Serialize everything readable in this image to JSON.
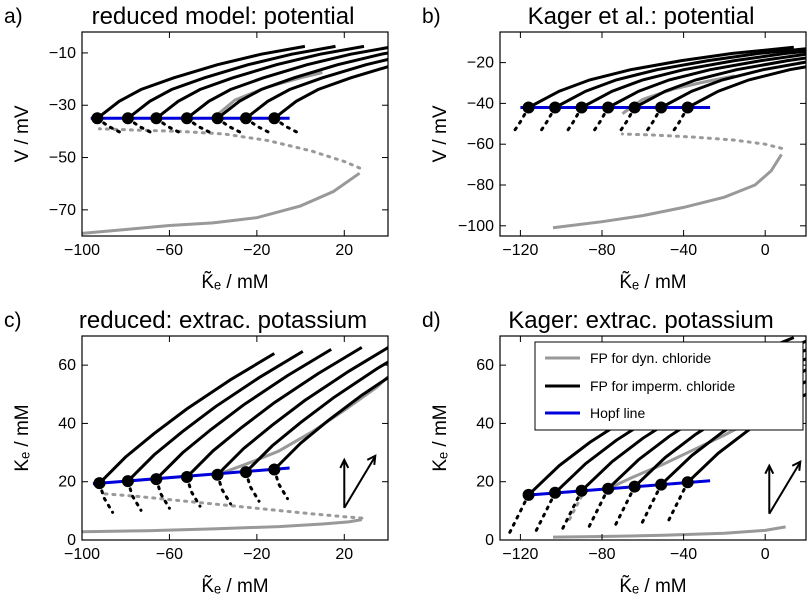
{
  "figure": {
    "legend": [
      {
        "label": "FP for dyn. chloride",
        "color": "#999999",
        "style": "solid"
      },
      {
        "label": "FP for imperm. chloride",
        "color": "#000000",
        "style": "solid"
      },
      {
        "label": "Hopf line",
        "color": "#0000dd",
        "style": "solid"
      }
    ],
    "colors": {
      "dyn": "#999999",
      "imperm": "#000000",
      "hopf": "#0000dd"
    }
  },
  "chart_data": [
    {
      "type": "line",
      "panel": "a)",
      "title": "reduced model: potential",
      "xlabel": "K̃ₑ / mM",
      "ylabel": "V / mV",
      "xlim": [
        -100,
        40
      ],
      "ylim": [
        -80,
        -2
      ],
      "xticks": [
        -100,
        -60,
        -20,
        20
      ],
      "yticks": [
        -70,
        -50,
        -30,
        -10
      ],
      "xtick_labels": [
        "−100",
        "−60",
        "−20",
        "20"
      ],
      "ytick_labels": [
        "−70",
        "−50",
        "−30",
        "−10"
      ],
      "hopf_points": [
        [
          -93,
          -35
        ],
        [
          -79,
          -35
        ],
        [
          -66,
          -35
        ],
        [
          -52,
          -35
        ],
        [
          -38,
          -35
        ],
        [
          -25,
          -35
        ],
        [
          -12,
          -35
        ]
      ],
      "hopf_line": {
        "x": [
          -96,
          -5
        ],
        "y": [
          -35,
          -35
        ]
      },
      "imperm_branch": {
        "dx": [
          0,
          10,
          20,
          35,
          55,
          75,
          95
        ],
        "dy": [
          0,
          6.5,
          11,
          15.5,
          20.5,
          24.5,
          27.5
        ],
        "dotted_dx": [
          0,
          5,
          12
        ],
        "dotted_dy": [
          0,
          -3,
          -6
        ]
      },
      "dyn_stable_low": {
        "x": [
          -100,
          -80,
          -60,
          -40,
          -20,
          0,
          15,
          27
        ],
        "y": [
          -79,
          -77.5,
          -76,
          -75,
          -73,
          -68.5,
          -63,
          -56
        ]
      },
      "dyn_unstable": {
        "x": [
          27,
          20,
          5,
          -15,
          -35,
          -55,
          -75,
          -92
        ],
        "y": [
          -54,
          -51.5,
          -47.5,
          -43.5,
          -41,
          -40,
          -39.5,
          -39
        ]
      },
      "dyn_stable_high": {
        "x": [
          -40,
          -30,
          -15,
          0,
          10
        ],
        "y": [
          -35,
          -28,
          -23,
          -19.5,
          -17.5
        ]
      }
    },
    {
      "type": "line",
      "panel": "b)",
      "title": "Kager et al.: potential",
      "xlabel": "K̃ₑ / mM",
      "ylabel": "V / mV",
      "xlim": [
        -130,
        20
      ],
      "ylim": [
        -105,
        -5
      ],
      "xticks": [
        -120,
        -80,
        -40,
        0
      ],
      "yticks": [
        -100,
        -80,
        -60,
        -40,
        -20
      ],
      "xtick_labels": [
        "−120",
        "−80",
        "−40",
        "0"
      ],
      "ytick_labels": [
        "−100",
        "−80",
        "−60",
        "−40",
        "−20"
      ],
      "hopf_points": [
        [
          -116,
          -42
        ],
        [
          -103,
          -42
        ],
        [
          -90,
          -42
        ],
        [
          -77,
          -42
        ],
        [
          -64,
          -42
        ],
        [
          -51,
          -42
        ],
        [
          -38,
          -42
        ]
      ],
      "hopf_line": {
        "x": [
          -120,
          -27
        ],
        "y": [
          -42,
          -42
        ]
      },
      "imperm_branch": {
        "dx": [
          0,
          15,
          30,
          50,
          75,
          100,
          130
        ],
        "dy": [
          0,
          8,
          13.5,
          18.5,
          23,
          26.5,
          29.5
        ],
        "dotted_dx": [
          0,
          -4,
          -8
        ],
        "dotted_dy": [
          0,
          -7,
          -13
        ]
      },
      "dyn_stable_low": {
        "x": [
          -104,
          -80,
          -60,
          -40,
          -20,
          -5,
          3,
          8
        ],
        "y": [
          -101,
          -98,
          -95,
          -91,
          -86,
          -80,
          -73,
          -65
        ]
      },
      "dyn_unstable": {
        "x": [
          8,
          0,
          -15,
          -35,
          -55,
          -70
        ],
        "y": [
          -62,
          -60,
          -58,
          -56.5,
          -55.5,
          -55
        ]
      },
      "dyn_stable_high": {
        "x": [
          -70,
          -60,
          -45,
          -30,
          -15
        ],
        "y": [
          -45,
          -38,
          -33,
          -29.5,
          -26.5
        ]
      }
    },
    {
      "type": "line",
      "panel": "c)",
      "title": "reduced: extrac. potassium",
      "xlabel": "K̃ₑ / mM",
      "ylabel": "Kₑ / mM",
      "xlim": [
        -100,
        40
      ],
      "ylim": [
        0,
        70
      ],
      "xticks": [
        -100,
        -60,
        -20,
        20
      ],
      "yticks": [
        0,
        20,
        40,
        60
      ],
      "xtick_labels": [
        "−100",
        "−60",
        "−20",
        "20"
      ],
      "ytick_labels": [
        "0",
        "20",
        "40",
        "60"
      ],
      "hopf_points": [
        [
          -92,
          19.5
        ],
        [
          -79,
          20.2
        ],
        [
          -66,
          20.9
        ],
        [
          -52,
          21.6
        ],
        [
          -38,
          22.4
        ],
        [
          -25,
          23.3
        ],
        [
          -12,
          24.2
        ]
      ],
      "hopf_line": {
        "x": [
          -95,
          -5
        ],
        "y": [
          19.3,
          24.7
        ]
      },
      "imperm_branch": {
        "dx": [
          0,
          12,
          25,
          40,
          60,
          80
        ],
        "dy": [
          0,
          9,
          17,
          25.5,
          35.5,
          44.5
        ],
        "dotted_dx": [
          0,
          2,
          6
        ],
        "dotted_dy": [
          0,
          -5,
          -10
        ]
      },
      "dyn_stable_low": {
        "x": [
          -100,
          -70,
          -40,
          -10,
          10,
          22,
          28
        ],
        "y": [
          2.8,
          3.2,
          3.8,
          4.6,
          5.5,
          6.2,
          7
        ]
      },
      "dyn_unstable": {
        "x": [
          28,
          20,
          5,
          -15,
          -35,
          -55,
          -75,
          -92
        ],
        "y": [
          7.5,
          8,
          9,
          10.5,
          12,
          13.5,
          15,
          16
        ]
      },
      "dyn_stable_high": {
        "x": [
          -38,
          -25,
          -10,
          5,
          20,
          35,
          40
        ],
        "y": [
          22.4,
          26,
          30.5,
          37,
          44.5,
          52.5,
          56
        ]
      },
      "arrows": {
        "x_data": 20,
        "y_data": 22
      }
    },
    {
      "type": "line",
      "panel": "d)",
      "title": "Kager: extrac. potassium",
      "xlabel": "K̃ₑ / mM",
      "ylabel": "Kₑ / mM",
      "xlim": [
        -130,
        20
      ],
      "ylim": [
        0,
        70
      ],
      "xticks": [
        -120,
        -80,
        -40,
        0
      ],
      "yticks": [
        0,
        20,
        40,
        60
      ],
      "xtick_labels": [
        "−120",
        "−80",
        "−40",
        "0"
      ],
      "ytick_labels": [
        "0",
        "20",
        "40",
        "60"
      ],
      "hopf_points": [
        [
          -116,
          15.5
        ],
        [
          -103,
          16.2
        ],
        [
          -90,
          16.9
        ],
        [
          -77,
          17.6
        ],
        [
          -64,
          18.3
        ],
        [
          -51,
          19
        ],
        [
          -38,
          19.8
        ]
      ],
      "hopf_line": {
        "x": [
          -118,
          -27
        ],
        "y": [
          15.3,
          20.3
        ]
      },
      "imperm_branch": {
        "dx": [
          0,
          15,
          30,
          50,
          70,
          95,
          130
        ],
        "dy": [
          0,
          10,
          18,
          27,
          35,
          44,
          54
        ],
        "dotted_dx": [
          0,
          -5,
          -10
        ],
        "dotted_dy": [
          0,
          -7,
          -14
        ]
      },
      "dyn_stable_low": {
        "x": [
          -104,
          -80,
          -50,
          -20,
          0,
          10
        ],
        "y": [
          1,
          1.2,
          1.6,
          2.3,
          3.3,
          4.5
        ]
      },
      "dyn_unstable": {
        "x": [
          -90,
          -93,
          -96
        ],
        "y": [
          15,
          11,
          7
        ]
      },
      "dyn_stable_high": {
        "x": [
          -77,
          -65,
          -50,
          -35,
          -20,
          -5,
          10
        ],
        "y": [
          17.6,
          21.5,
          26,
          31,
          36,
          41.5,
          47
        ]
      },
      "arrows": {
        "x_data": 2,
        "y_data": 20
      }
    }
  ]
}
